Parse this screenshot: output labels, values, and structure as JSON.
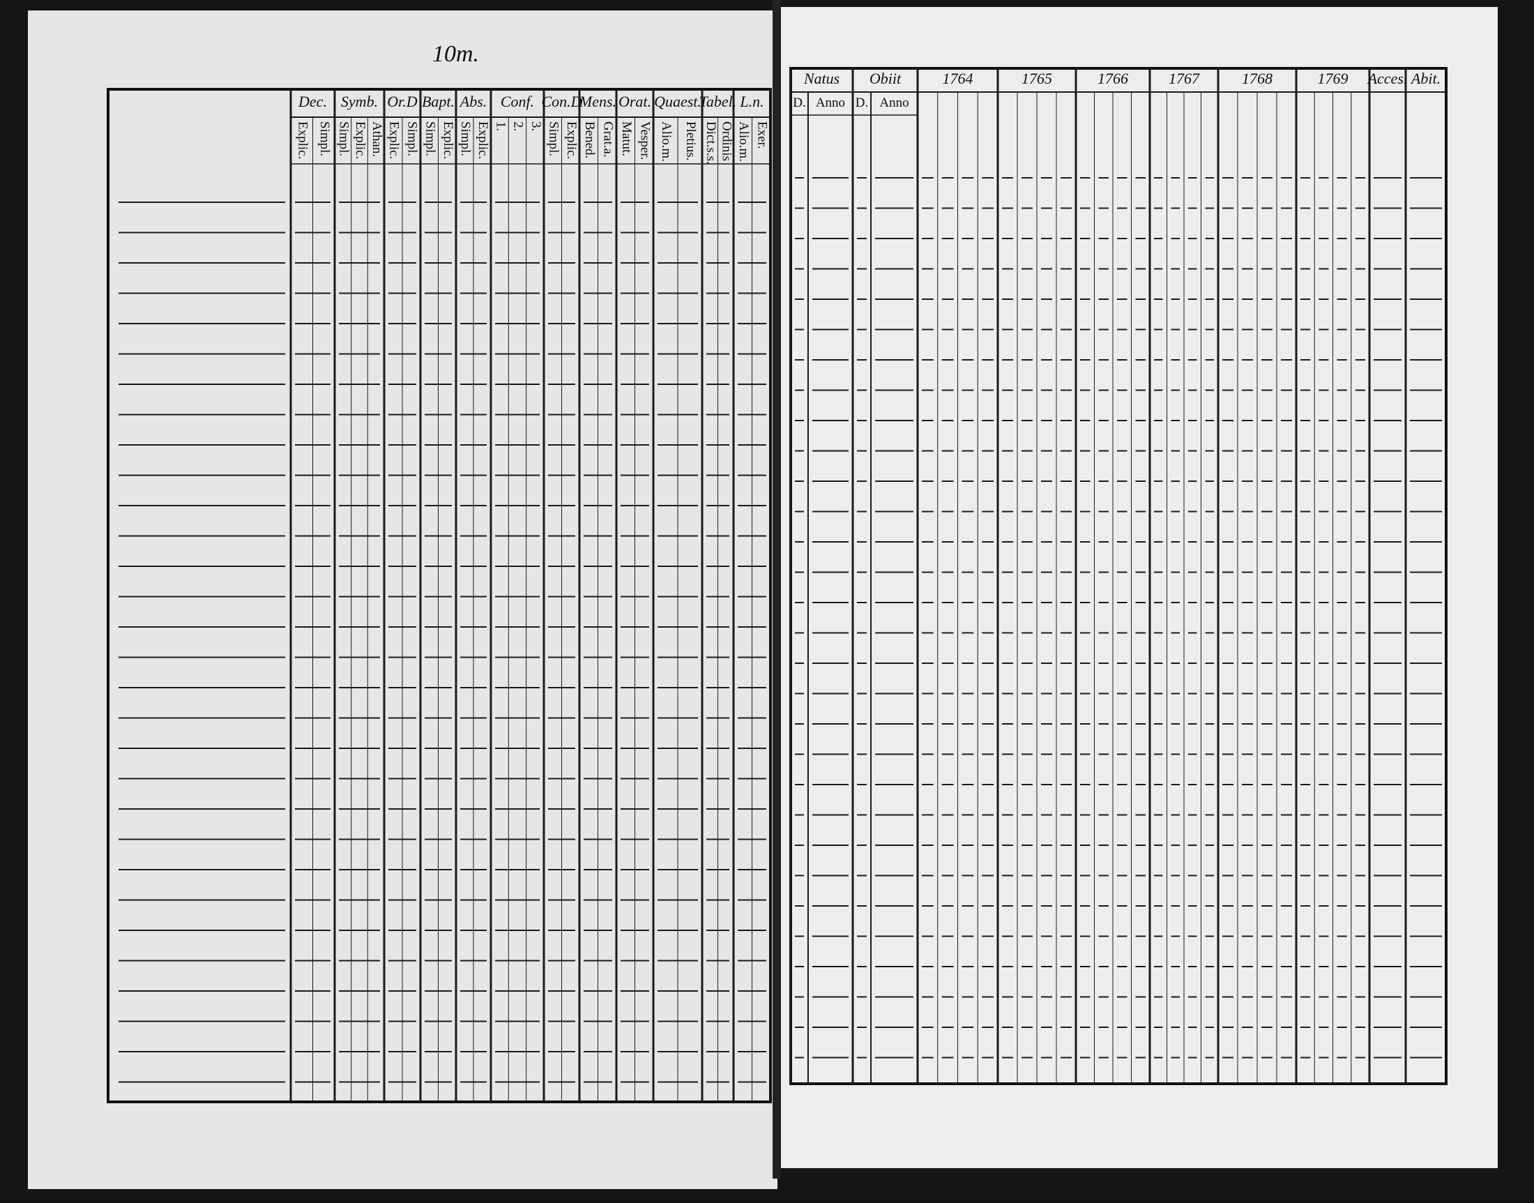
{
  "left_page": {
    "note": "10m.",
    "columns": [
      {
        "label": "Dec.",
        "sub": [
          "Explic.",
          "Simpl."
        ]
      },
      {
        "label": "Symb.",
        "sub": [
          "Simpl.",
          "Explic.",
          "Athan."
        ]
      },
      {
        "label": "Or.D",
        "sub": [
          "Explic.",
          "Simpl."
        ]
      },
      {
        "label": "Bapt.",
        "sub": [
          "Simpl.",
          "Explic."
        ]
      },
      {
        "label": "Abs.",
        "sub": [
          "Simpl.",
          "Explic."
        ]
      },
      {
        "label": "Conf.",
        "sub": [
          "1.",
          "2.",
          "3."
        ]
      },
      {
        "label": "Con.D",
        "sub": [
          "Simpl.",
          "Explic."
        ]
      },
      {
        "label": "Mens.",
        "sub": [
          "Bened.",
          "Grat.a."
        ]
      },
      {
        "label": "Orat.",
        "sub": [
          "Matut.",
          "Vesper."
        ]
      },
      {
        "label": "Quaest.",
        "sub": [
          "Alio.m.",
          "Pletius."
        ]
      },
      {
        "label": "Tabel.",
        "sub": [
          "Dict.s.s.",
          "Ordinis"
        ]
      },
      {
        "label": "L.n.",
        "sub": [
          "Alio.m.",
          "Exer."
        ]
      }
    ]
  },
  "right_page": {
    "columns": [
      {
        "label": "Natus",
        "sub": [
          "D.",
          "Anno"
        ]
      },
      {
        "label": "Obiit",
        "sub": [
          "D.",
          "Anno"
        ]
      },
      {
        "label": "1764"
      },
      {
        "label": "1765"
      },
      {
        "label": "1766"
      },
      {
        "label": "1767"
      },
      {
        "label": "1768"
      },
      {
        "label": "1769"
      },
      {
        "label": "Acces."
      },
      {
        "label": "Abit."
      }
    ]
  }
}
